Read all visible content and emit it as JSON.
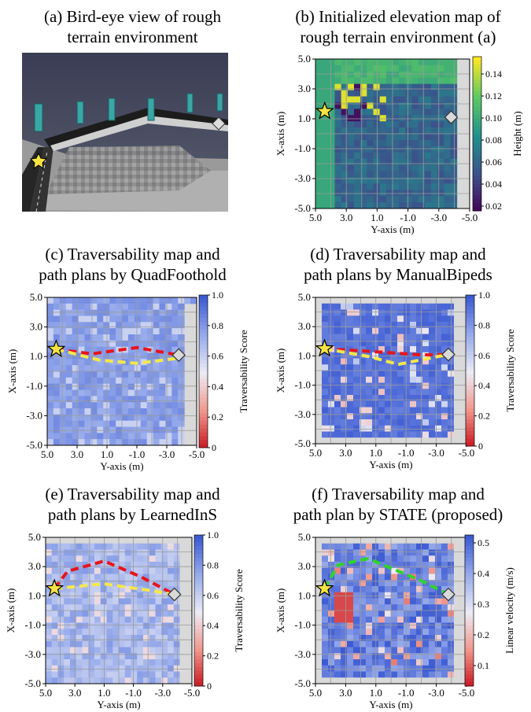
{
  "panels": {
    "a": {
      "title": [
        "(a) Bird-eye view of rough",
        "terrain environment"
      ]
    },
    "b": {
      "title": [
        "(b) Initialized elevation map of",
        "rough terrain environment (a)"
      ],
      "xlabel": "Y-axis (m)",
      "ylabel": "X-axis (m)",
      "cbar_label": "Height (m)",
      "cbar_ticks": [
        "0.14",
        "0.12",
        "0.10",
        "0.08",
        "0.06",
        "0.04",
        "0.02"
      ]
    },
    "c": {
      "title": [
        "(c) Traversability map and",
        "path plans by QuadFoothold"
      ],
      "xlabel": "Y-axis (m)",
      "ylabel": "X-axis (m)",
      "cbar_label": "Traversability Score",
      "cbar_ticks": [
        "1.0",
        "0.8",
        "0.6",
        "0.4",
        "0.2",
        "0"
      ]
    },
    "d": {
      "title": [
        "(d) Traversability map and",
        "path plans by ManualBipeds"
      ],
      "xlabel": "Y-axis (m)",
      "ylabel": "X-axis (m)",
      "cbar_label": "Traversability Score",
      "cbar_ticks": [
        "1.0",
        "0.8",
        "0.6",
        "0.4",
        "0.2",
        "0"
      ]
    },
    "e": {
      "title": [
        "(e) Traversability map and",
        "path plans by LearnedInS"
      ],
      "xlabel": "Y-axis (m)",
      "ylabel": "X-axis (m)",
      "cbar_label": "Traversability Score",
      "cbar_ticks": [
        "1.0",
        "0.8",
        "0.6",
        "0.4",
        "0.2",
        "0"
      ]
    },
    "f": {
      "title": [
        "(f) Traversability map and",
        "path plan by STATE (proposed)"
      ],
      "xlabel": "Y-axis (m)",
      "ylabel": "X-axis (m)",
      "cbar_label": "Linear velocity (m/s)",
      "cbar_ticks": [
        "0.5",
        "0.4",
        "0.3",
        "0.2",
        "0.1"
      ]
    }
  },
  "axes": {
    "xticks": [
      "5.0",
      "3.0",
      "1.0",
      "-1.0",
      "-3.0",
      "-5.0"
    ],
    "yticks": [
      "5.0",
      "3.0",
      "1.0",
      "-1.0",
      "-3.0",
      "-5.0"
    ]
  },
  "colors": {
    "red_path": "#e8141b",
    "yellow_path": "#f5e84a",
    "green_path": "#2fd42b",
    "star": "#f7e443",
    "diamond": "#d9d9d9"
  }
}
